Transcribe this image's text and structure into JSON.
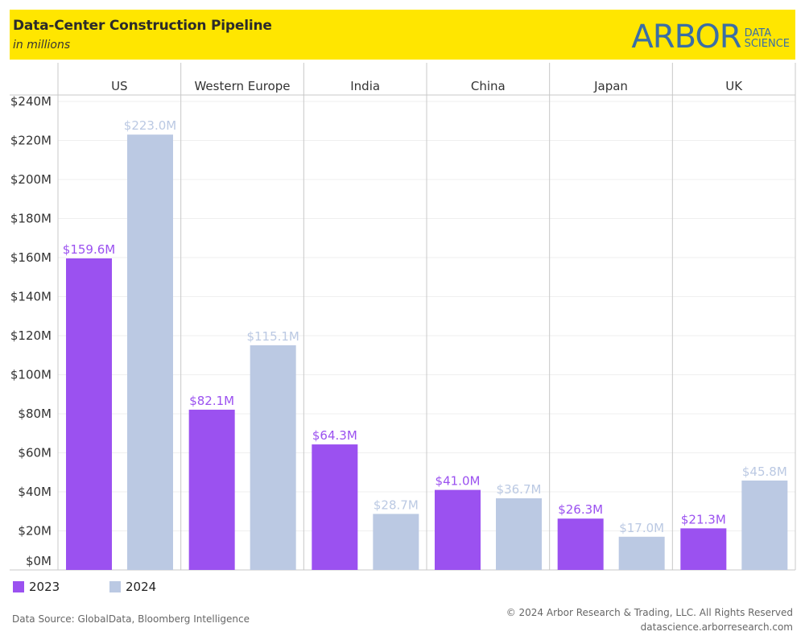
{
  "header": {
    "title": "Data-Center Construction Pipeline",
    "subtitle": "in millions",
    "logo_main": "ARBOR",
    "logo_sub_line1": "DATA",
    "logo_sub_line2": "SCIENCE",
    "banner_color": "#ffe600",
    "logo_color": "#3a6ea5"
  },
  "chart_data": {
    "type": "bar",
    "title": "Data-Center Construction Pipeline",
    "subtitle": "in millions",
    "xlabel": "",
    "ylabel": "",
    "categories": [
      "US",
      "Western Europe",
      "India",
      "China",
      "Japan",
      "UK"
    ],
    "series": [
      {
        "name": "2023",
        "color": "#9b51f0",
        "label_color": "#9b51f0",
        "values": [
          159.6,
          82.1,
          64.3,
          41.0,
          26.3,
          21.3
        ],
        "labels": [
          "$159.6M",
          "$82.1M",
          "$64.3M",
          "$41.0M",
          "$26.3M",
          "$21.3M"
        ]
      },
      {
        "name": "2024",
        "color": "#bbc9e3",
        "label_color": "#bbc9e3",
        "values": [
          223.0,
          115.1,
          28.7,
          36.7,
          17.0,
          45.8
        ],
        "labels": [
          "$223.0M",
          "$115.1M",
          "$28.7M",
          "$36.7M",
          "$17.0M",
          "$45.8M"
        ]
      }
    ],
    "ylim": [
      0,
      240
    ],
    "yticks": [
      0,
      20,
      40,
      60,
      80,
      100,
      120,
      140,
      160,
      180,
      200,
      220,
      240
    ],
    "ytick_labels": [
      "$0M",
      "$20M",
      "$40M",
      "$60M",
      "$80M",
      "$100M",
      "$120M",
      "$140M",
      "$160M",
      "$180M",
      "$200M",
      "$220M",
      "$240M"
    ],
    "grid": true,
    "legend_position": "bottom-left"
  },
  "legend": {
    "items": [
      {
        "label": "2023",
        "color": "#9b51f0"
      },
      {
        "label": "2024",
        "color": "#bbc9e3"
      }
    ]
  },
  "footer": {
    "source": "Data Source: GlobalData, Bloomberg Intelligence",
    "copyright": "© 2024 Arbor Research & Trading, LLC. All Rights Reserved",
    "website": "datascience.arborresearch.com"
  }
}
